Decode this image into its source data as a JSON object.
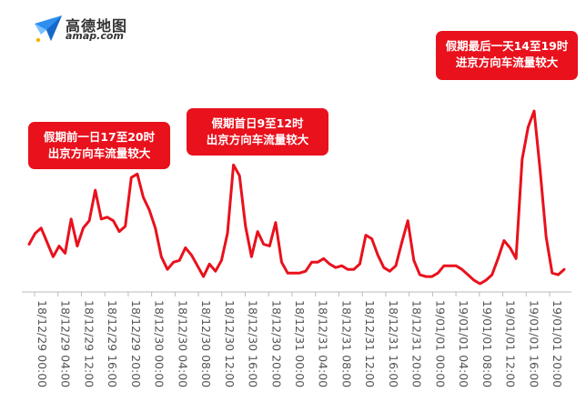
{
  "logo": {
    "name_cn": "高德地图",
    "name_en": "amap.com",
    "icon": "paper-plane-icon"
  },
  "annotations": [
    {
      "lines": [
        "假期前一日17至20时",
        "出京方向车流量较大"
      ]
    },
    {
      "lines": [
        "假期首日9至12时",
        "出京方向车流量较大"
      ]
    },
    {
      "lines": [
        "假期最后一天14至19时",
        "进京方向车流量较大"
      ]
    }
  ],
  "colors": {
    "line": "#e8111c",
    "callout_bg": "#e8111c",
    "axis": "#bbbbbb",
    "tick_text": "#555555"
  },
  "chart_data": {
    "type": "line",
    "title": "",
    "xlabel": "",
    "ylabel": "",
    "y_axis_visible": false,
    "grid": false,
    "ylim": [
      0,
      1
    ],
    "tick_labels": [
      "18/12/29 00:00",
      "18/12/29 04:00",
      "18/12/29 12:00",
      "18/12/29 16:00",
      "18/12/29 20:00",
      "18/12/30 00:00",
      "18/12/30 04:00",
      "18/12/30 08:00",
      "18/12/30 12:00",
      "18/12/30 16:00",
      "18/12/30 20:00",
      "18/12/31 00:00",
      "18/12/31 04:00",
      "18/12/31 08:00",
      "18/12/31 12:00",
      "18/12/31 16:00",
      "18/12/31 20:00",
      "19/01/01 00:00",
      "19/01/01 04:00",
      "19/01/01 08:00",
      "19/01/01 12:00",
      "19/01/01 16:00",
      "19/01/01 20:00"
    ],
    "series": [
      {
        "values": [
          0.24,
          0.3,
          0.33,
          0.25,
          0.17,
          0.23,
          0.19,
          0.38,
          0.23,
          0.33,
          0.37,
          0.54,
          0.38,
          0.39,
          0.37,
          0.31,
          0.34,
          0.61,
          0.63,
          0.5,
          0.43,
          0.33,
          0.17,
          0.1,
          0.14,
          0.15,
          0.22,
          0.18,
          0.12,
          0.06,
          0.13,
          0.09,
          0.15,
          0.3,
          0.68,
          0.62,
          0.34,
          0.17,
          0.31,
          0.24,
          0.23,
          0.36,
          0.14,
          0.08,
          0.08,
          0.08,
          0.09,
          0.14,
          0.14,
          0.16,
          0.13,
          0.11,
          0.12,
          0.1,
          0.1,
          0.13,
          0.29,
          0.27,
          0.18,
          0.11,
          0.09,
          0.12,
          0.25,
          0.37,
          0.15,
          0.07,
          0.06,
          0.06,
          0.08,
          0.12,
          0.12,
          0.12,
          0.1,
          0.07,
          0.04,
          0.02,
          0.04,
          0.07,
          0.16,
          0.26,
          0.22,
          0.16,
          0.71,
          0.89,
          0.98,
          0.65,
          0.28,
          0.08,
          0.07,
          0.1
        ]
      }
    ]
  }
}
